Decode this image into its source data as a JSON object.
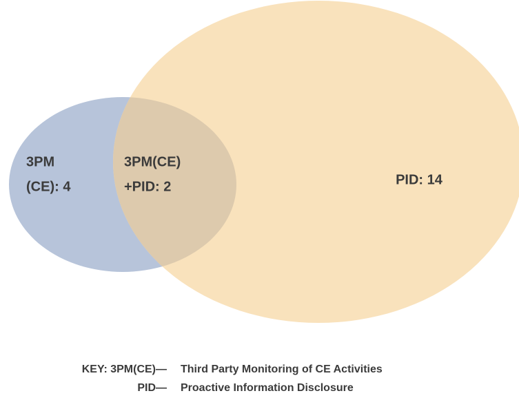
{
  "regions": [
    {
      "lines": [
        "3PM",
        "(CE): 4"
      ]
    },
    {
      "lines": [
        "3PM(CE)",
        "+PID: 2"
      ]
    },
    {
      "lines": [
        "PID: 14"
      ]
    }
  ],
  "key": [
    {
      "term": "KEY: 3PM(CE)—",
      "definition": "Third Party Monitoring of CE Activities"
    },
    {
      "term": "PID—",
      "definition": "Proactive Information Disclosure"
    }
  ]
}
